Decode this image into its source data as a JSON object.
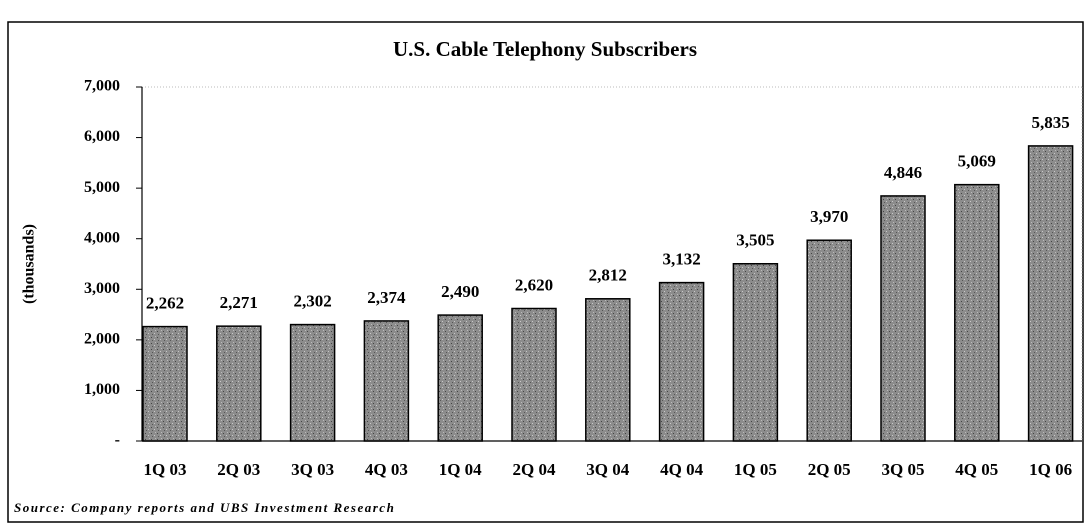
{
  "chart_data": {
    "type": "bar",
    "title": "U.S. Cable Telephony Subscribers",
    "y_label": "(thousands)",
    "source": "Source: Company reports and UBS Investment Research",
    "categories": [
      "1Q 03",
      "2Q 03",
      "3Q 03",
      "4Q 03",
      "1Q 04",
      "2Q 04",
      "3Q 04",
      "4Q 04",
      "1Q 05",
      "2Q 05",
      "3Q 05",
      "4Q 05",
      "1Q 06"
    ],
    "values": [
      2262,
      2271,
      2302,
      2374,
      2490,
      2620,
      2812,
      3132,
      3505,
      3970,
      4846,
      5069,
      5835
    ],
    "value_labels": [
      "2,262",
      "2,271",
      "2,302",
      "2,374",
      "2,490",
      "2,620",
      "2,812",
      "3,132",
      "3,505",
      "3,970",
      "4,846",
      "5,069",
      "5,835"
    ],
    "color": "#8c8c8c",
    "ylim": [
      0,
      7000
    ],
    "yticks": [
      {
        "value": 0,
        "label": "-"
      },
      {
        "value": 1000,
        "label": "1,000"
      },
      {
        "value": 2000,
        "label": "2,000"
      },
      {
        "value": 3000,
        "label": "3,000"
      },
      {
        "value": 4000,
        "label": "4,000"
      },
      {
        "value": 5000,
        "label": "5,000"
      },
      {
        "value": 6000,
        "label": "6,000"
      },
      {
        "value": 7000,
        "label": "7,000"
      }
    ]
  }
}
